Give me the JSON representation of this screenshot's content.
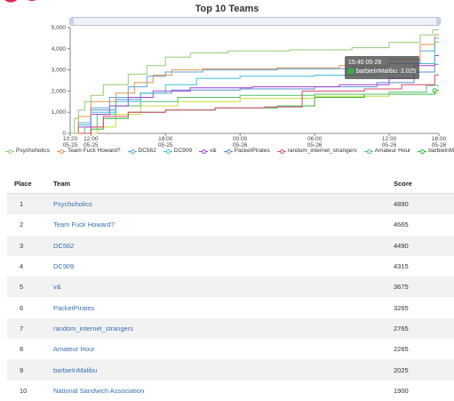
{
  "brand_color": "#e8214f",
  "chart_data": {
    "type": "line",
    "title": "Top 10 Teams",
    "xlabel": "",
    "ylabel": "",
    "ylim": [
      0,
      5000
    ],
    "yticks": [
      "0",
      "1,000",
      "2,000",
      "3,000",
      "4,000",
      "5,000"
    ],
    "xticks": [
      {
        "time": "10:20",
        "date": "05-25"
      },
      {
        "time": "12:00",
        "date": "05-25"
      },
      {
        "time": "18:00",
        "date": "05-25"
      },
      {
        "time": "00:00",
        "date": "05-26"
      },
      {
        "time": "06:00",
        "date": "05-26"
      },
      {
        "time": "12:00",
        "date": "05-26"
      },
      {
        "time": "16:00",
        "date": "05-26"
      }
    ],
    "xlim": [
      "05-25 10:20",
      "05-26 16:00"
    ],
    "grid": false,
    "legend_position": "bottom",
    "series": [
      {
        "name": "Psychoholics",
        "color": "#91cc75",
        "points": [
          [
            "05-25 10:20",
            0
          ],
          [
            "05-25 10:40",
            700
          ],
          [
            "05-25 11:00",
            1100
          ],
          [
            "05-25 11:30",
            1500
          ],
          [
            "05-25 12:00",
            1800
          ],
          [
            "05-25 13:00",
            2300
          ],
          [
            "05-25 15:00",
            2800
          ],
          [
            "05-25 16:30",
            3200
          ],
          [
            "05-25 18:00",
            3600
          ],
          [
            "05-25 20:00",
            3800
          ],
          [
            "05-25 23:00",
            3900
          ],
          [
            "05-26 04:00",
            3950
          ],
          [
            "05-26 09:00",
            4050
          ],
          [
            "05-26 12:00",
            4300
          ],
          [
            "05-26 14:30",
            4650
          ],
          [
            "05-26 15:30",
            4890
          ]
        ]
      },
      {
        "name": "Team Fuck Howard?",
        "color": "#e0924b",
        "points": [
          [
            "05-25 10:20",
            0
          ],
          [
            "05-25 11:00",
            800
          ],
          [
            "05-25 12:00",
            1500
          ],
          [
            "05-25 14:00",
            1900
          ],
          [
            "05-25 15:30",
            2400
          ],
          [
            "05-25 17:00",
            2750
          ],
          [
            "05-25 18:30",
            3000
          ],
          [
            "05-25 21:00",
            3050
          ],
          [
            "05-26 03:00",
            3100
          ],
          [
            "05-26 08:00",
            3200
          ],
          [
            "05-26 12:00",
            3500
          ],
          [
            "05-26 14:30",
            4200
          ],
          [
            "05-26 15:40",
            4665
          ]
        ]
      },
      {
        "name": "DC562",
        "color": "#5aa3e6",
        "points": [
          [
            "05-25 10:20",
            0
          ],
          [
            "05-25 11:00",
            500
          ],
          [
            "05-25 12:00",
            1200
          ],
          [
            "05-25 13:30",
            1700
          ],
          [
            "05-25 15:00",
            2200
          ],
          [
            "05-25 16:30",
            2700
          ],
          [
            "05-25 18:00",
            2900
          ],
          [
            "05-25 21:00",
            3000
          ],
          [
            "05-26 03:00",
            3050
          ],
          [
            "05-26 09:00",
            3100
          ],
          [
            "05-26 12:00",
            3300
          ],
          [
            "05-26 14:30",
            3900
          ],
          [
            "05-26 15:40",
            4490
          ]
        ]
      },
      {
        "name": "DC909",
        "color": "#3fc1d6",
        "points": [
          [
            "05-25 10:20",
            0
          ],
          [
            "05-25 11:00",
            400
          ],
          [
            "05-25 12:00",
            1000
          ],
          [
            "05-25 14:00",
            1500
          ],
          [
            "05-25 16:00",
            1900
          ],
          [
            "05-25 18:00",
            2300
          ],
          [
            "05-25 20:30",
            2600
          ],
          [
            "05-26 00:00",
            2700
          ],
          [
            "05-26 06:00",
            2750
          ],
          [
            "05-26 11:00",
            2850
          ],
          [
            "05-26 14:00",
            3300
          ],
          [
            "05-26 15:40",
            4315
          ]
        ]
      },
      {
        "name": "v&",
        "color": "#a43fd6",
        "points": [
          [
            "05-25 10:20",
            0
          ],
          [
            "05-25 11:00",
            300
          ],
          [
            "05-25 12:00",
            900
          ],
          [
            "05-25 13:30",
            1300
          ],
          [
            "05-25 15:00",
            1700
          ],
          [
            "05-25 17:00",
            2000
          ],
          [
            "05-25 20:00",
            2150
          ],
          [
            "05-26 01:00",
            2200
          ],
          [
            "05-26 08:00",
            2300
          ],
          [
            "05-26 12:00",
            2600
          ],
          [
            "05-26 14:00",
            3200
          ],
          [
            "05-26 15:40",
            3675
          ]
        ]
      },
      {
        "name": "PacketPirates",
        "color": "#5a8fd0",
        "points": [
          [
            "05-25 10:20",
            0
          ],
          [
            "05-25 11:00",
            400
          ],
          [
            "05-25 12:00",
            1100
          ],
          [
            "05-25 14:00",
            1600
          ],
          [
            "05-25 16:00",
            1900
          ],
          [
            "05-25 18:30",
            2050
          ],
          [
            "05-26 00:00",
            2100
          ],
          [
            "05-26 06:00",
            2200
          ],
          [
            "05-26 11:00",
            2400
          ],
          [
            "05-26 14:00",
            2900
          ],
          [
            "05-26 15:40",
            3265
          ]
        ]
      },
      {
        "name": "random_internet_strangers",
        "color": "#d9476b",
        "points": [
          [
            "05-25 10:20",
            0
          ],
          [
            "05-25 12:00",
            300
          ],
          [
            "05-25 13:00",
            800
          ],
          [
            "05-25 15:00",
            1000
          ],
          [
            "05-25 18:00",
            1100
          ],
          [
            "05-25 22:00",
            1200
          ],
          [
            "05-26 02:00",
            1250
          ],
          [
            "05-26 05:00",
            2000
          ],
          [
            "05-26 10:00",
            2100
          ],
          [
            "05-26 13:00",
            2300
          ],
          [
            "05-26 15:40",
            2765
          ]
        ]
      },
      {
        "name": "Amateur Hour",
        "color": "#4fc26a",
        "points": [
          [
            "05-25 10:20",
            0
          ],
          [
            "05-25 11:30",
            300
          ],
          [
            "05-25 12:30",
            900
          ],
          [
            "05-25 14:00",
            1300
          ],
          [
            "05-25 16:00",
            1500
          ],
          [
            "05-25 19:00",
            1700
          ],
          [
            "05-26 00:00",
            1800
          ],
          [
            "05-26 06:00",
            1850
          ],
          [
            "05-26 12:00",
            1950
          ],
          [
            "05-26 15:00",
            2265
          ]
        ]
      },
      {
        "name": "barbieInMalibu",
        "color": "#2db53a",
        "points": [
          [
            "05-25 10:20",
            0
          ],
          [
            "05-25 12:00",
            200
          ],
          [
            "05-25 13:00",
            700
          ],
          [
            "05-25 15:00",
            1000
          ],
          [
            "05-25 18:00",
            1100
          ],
          [
            "05-25 22:00",
            1200
          ],
          [
            "05-26 03:00",
            1300
          ],
          [
            "05-26 06:00",
            1700
          ],
          [
            "05-26 10:00",
            1850
          ],
          [
            "05-26 15:40",
            2025
          ]
        ]
      },
      {
        "name": "National Sandwich Association",
        "color": "#c8dc3a",
        "points": [
          [
            "05-25 10:20",
            0
          ],
          [
            "05-25 12:30",
            300
          ],
          [
            "05-25 14:00",
            900
          ],
          [
            "05-25 16:00",
            1300
          ],
          [
            "05-25 19:00",
            1500
          ],
          [
            "05-26 00:00",
            1650
          ],
          [
            "05-26 06:00",
            1750
          ],
          [
            "05-26 12:00",
            1850
          ],
          [
            "05-26 15:40",
            1900
          ]
        ]
      }
    ],
    "tooltip": {
      "time": "15:40 05-26",
      "series": "barbieInMalibu",
      "value": "2,025"
    }
  },
  "legend_visible": [
    "Psychoholics",
    "Team Fuck Howard?",
    "DC562",
    "DC909",
    "v&",
    "PacketPirates",
    "random_internet_strangers",
    "Amateur Hour",
    "barbieInMalibu"
  ],
  "table": {
    "headers": {
      "place": "Place",
      "team": "Team",
      "score": "Score"
    },
    "rows": [
      {
        "place": "1",
        "team": "Psychoholics",
        "score": "4890"
      },
      {
        "place": "2",
        "team": "Team Fuck Howard?",
        "score": "4665"
      },
      {
        "place": "3",
        "team": "DC562",
        "score": "4490"
      },
      {
        "place": "4",
        "team": "DC909",
        "score": "4315"
      },
      {
        "place": "5",
        "team": "v&",
        "score": "3675"
      },
      {
        "place": "6",
        "team": "PacketPirates",
        "score": "3265"
      },
      {
        "place": "7",
        "team": "random_internet_strangers",
        "score": "2765"
      },
      {
        "place": "8",
        "team": "Amateur Hour",
        "score": "2265"
      },
      {
        "place": "9",
        "team": "barbieInMalibu",
        "score": "2025"
      },
      {
        "place": "10",
        "team": "National Sandwich Association",
        "score": "1900"
      }
    ]
  }
}
